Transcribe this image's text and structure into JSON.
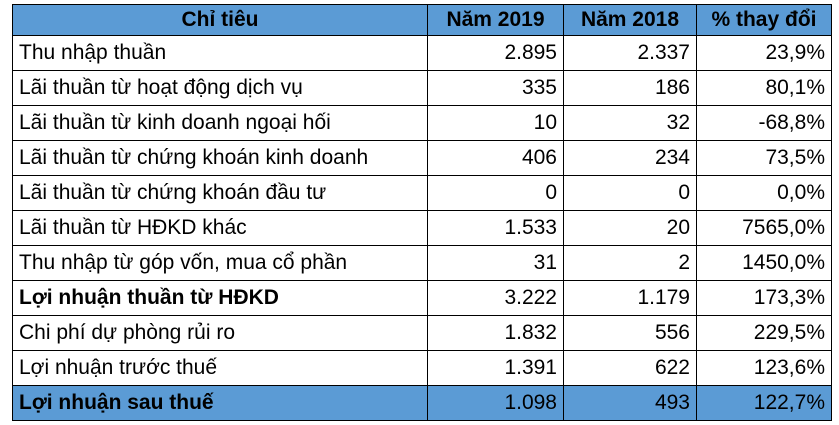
{
  "table": {
    "headers": [
      "Chỉ tiêu",
      "Năm 2019",
      "Năm 2018",
      "% thay đổi"
    ],
    "rows": [
      {
        "label": "Thu nhập thuần",
        "y2019": "2.895",
        "y2018": "2.337",
        "change": "23,9%",
        "bold": false
      },
      {
        "label": "Lãi thuần từ hoạt động dịch vụ",
        "y2019": "335",
        "y2018": "186",
        "change": "80,1%",
        "bold": false
      },
      {
        "label": "Lãi thuần từ kinh doanh ngoại hối",
        "y2019": "10",
        "y2018": "32",
        "change": "-68,8%",
        "bold": false
      },
      {
        "label": "Lãi thuần từ chứng khoán kinh doanh",
        "y2019": "406",
        "y2018": "234",
        "change": "73,5%",
        "bold": false
      },
      {
        "label": "Lãi thuần từ chứng khoán đầu tư",
        "y2019": "0",
        "y2018": "0",
        "change": "0,0%",
        "bold": false
      },
      {
        "label": "Lãi thuần từ HĐKD khác",
        "y2019": "1.533",
        "y2018": "20",
        "change": "7565,0%",
        "bold": false
      },
      {
        "label": "Thu nhập từ góp vốn, mua cổ phần",
        "y2019": "31",
        "y2018": "2",
        "change": "1450,0%",
        "bold": false
      },
      {
        "label": "Lợi nhuận thuần từ HĐKD",
        "y2019": "3.222",
        "y2018": "1.179",
        "change": "173,3%",
        "bold": true
      },
      {
        "label": "Chi phí dự phòng rủi ro",
        "y2019": "1.832",
        "y2018": "556",
        "change": "229,5%",
        "bold": false
      },
      {
        "label": "Lợi nhuận trước thuế",
        "y2019": "1.391",
        "y2018": "622",
        "change": "123,6%",
        "bold": false
      },
      {
        "label": "Lợi nhuận sau thuế",
        "y2019": "1.098",
        "y2018": "493",
        "change": "122,7%",
        "bold": true,
        "highlight": true
      }
    ]
  },
  "colors": {
    "header_bg": "#5b9bd5",
    "highlight_bg": "#5b9bd5",
    "border": "#000000"
  }
}
